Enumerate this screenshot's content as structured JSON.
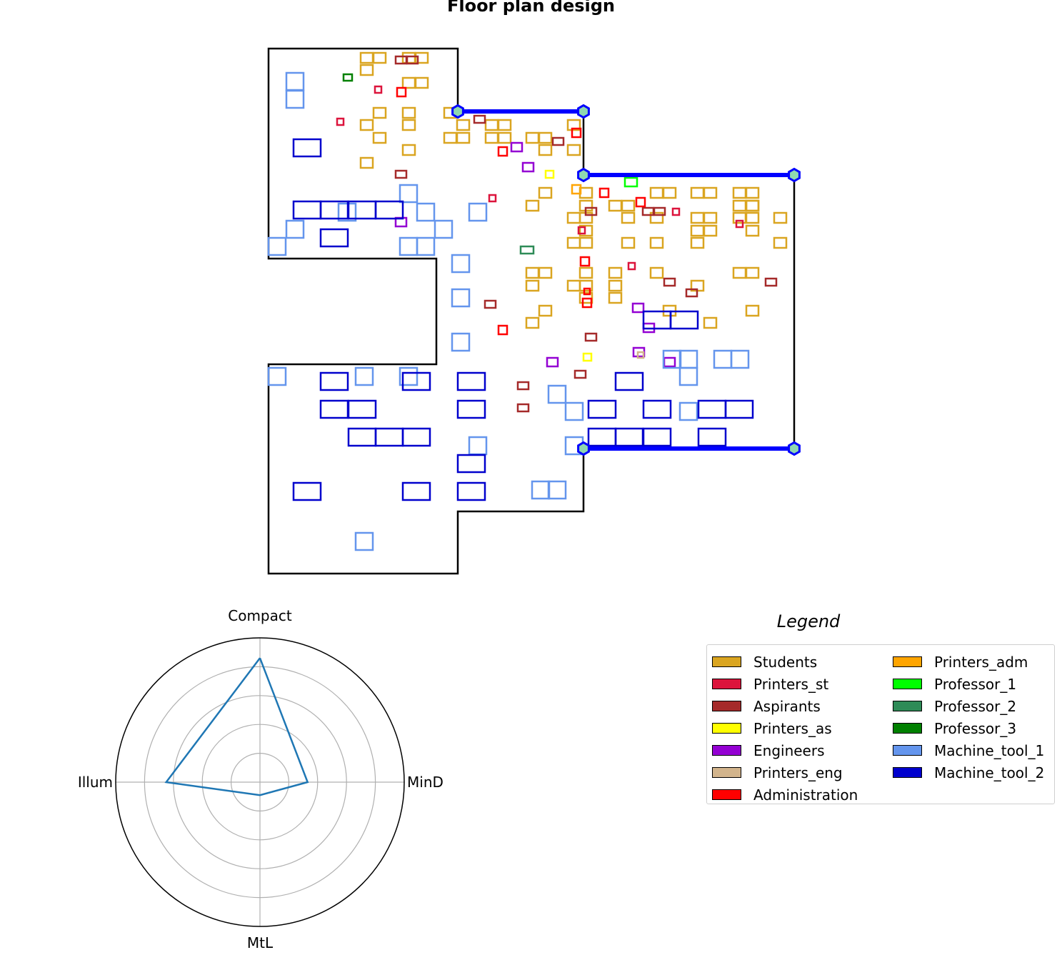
{
  "title": "Floor plan design",
  "colors": {
    "Students": "#DAA520",
    "Printers_st": "#DC143C",
    "Aspirants": "#A52A2A",
    "Printers_as": "#FFFF00",
    "Engineers": "#9400D3",
    "Printers_eng": "#D2B48C",
    "Administration": "#FF0000",
    "Printers_adm": "#FFA500",
    "Professor_1": "#00FF00",
    "Professor_2": "#2E8B57",
    "Professor_3": "#008000",
    "Machine_tool_1": "#6495ED",
    "Machine_tool_2": "#0000CD",
    "corridor": "#0000FF",
    "node_fill": "#8FD8B0",
    "radar_line": "#1F77B4"
  },
  "legend": {
    "title": "Legend",
    "items": [
      "Students",
      "Printers_st",
      "Aspirants",
      "Printers_as",
      "Engineers",
      "Printers_eng",
      "Administration",
      "Printers_adm",
      "Professor_1",
      "Professor_2",
      "Professor_3",
      "Machine_tool_1",
      "Machine_tool_2"
    ]
  },
  "radar": {
    "labels": [
      "Compact",
      "MinD",
      "MtL",
      "Illum"
    ],
    "values": [
      0.86,
      0.33,
      0.09,
      0.65
    ],
    "rings": [
      0.2,
      0.4,
      0.6,
      0.8,
      1.0
    ]
  }
}
